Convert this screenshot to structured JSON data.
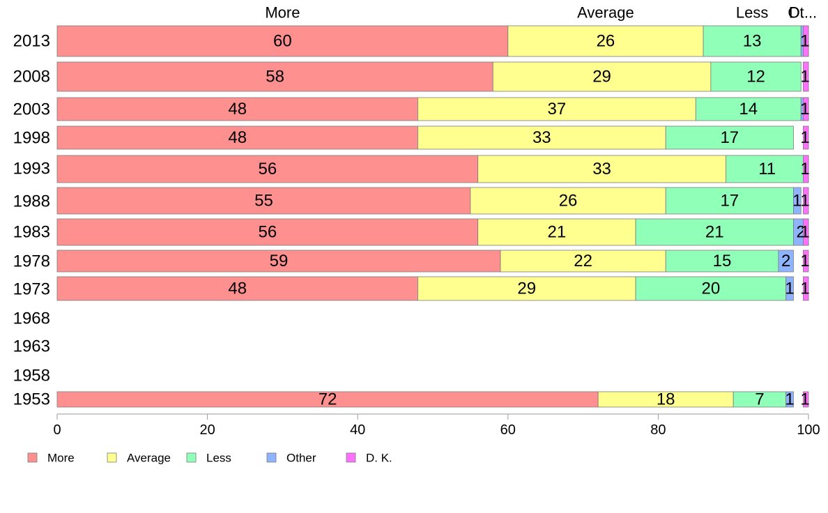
{
  "chart_data": {
    "type": "bar",
    "orientation": "horizontal",
    "stacked": true,
    "categories": [
      "2013",
      "2008",
      "2003",
      "1998",
      "1993",
      "1988",
      "1983",
      "1978",
      "1973",
      "1968",
      "1963",
      "1958",
      "1953"
    ],
    "series": [
      {
        "name": "More",
        "color": "#ff9090",
        "values": [
          60,
          58,
          48,
          48,
          56,
          55,
          56,
          59,
          48,
          null,
          null,
          null,
          72
        ]
      },
      {
        "name": "Average",
        "color": "#ffff90",
        "values": [
          26,
          29,
          37,
          33,
          33,
          26,
          21,
          22,
          29,
          null,
          null,
          null,
          18
        ]
      },
      {
        "name": "Less",
        "color": "#90ffb8",
        "values": [
          13,
          12,
          14,
          17,
          11,
          17,
          21,
          15,
          20,
          null,
          null,
          null,
          7
        ]
      },
      {
        "name": "Other",
        "color": "#8fb4ff",
        "values": [
          1,
          0,
          1,
          0,
          0,
          1,
          2,
          2,
          1,
          null,
          null,
          null,
          1
        ]
      },
      {
        "name": "D. K.",
        "color": "#ff70ff",
        "values": [
          1,
          1,
          1,
          1,
          1,
          1,
          1,
          1,
          1,
          null,
          null,
          null,
          1
        ]
      }
    ],
    "top_labels": [
      "More",
      "Average",
      "Less",
      "Ot",
      "D."
    ],
    "top_labels_suffix": "...",
    "xlim": [
      0,
      100
    ],
    "xticks": [
      0,
      20,
      40,
      60,
      80,
      100
    ],
    "grid": false,
    "legend_position": "bottom-left"
  }
}
